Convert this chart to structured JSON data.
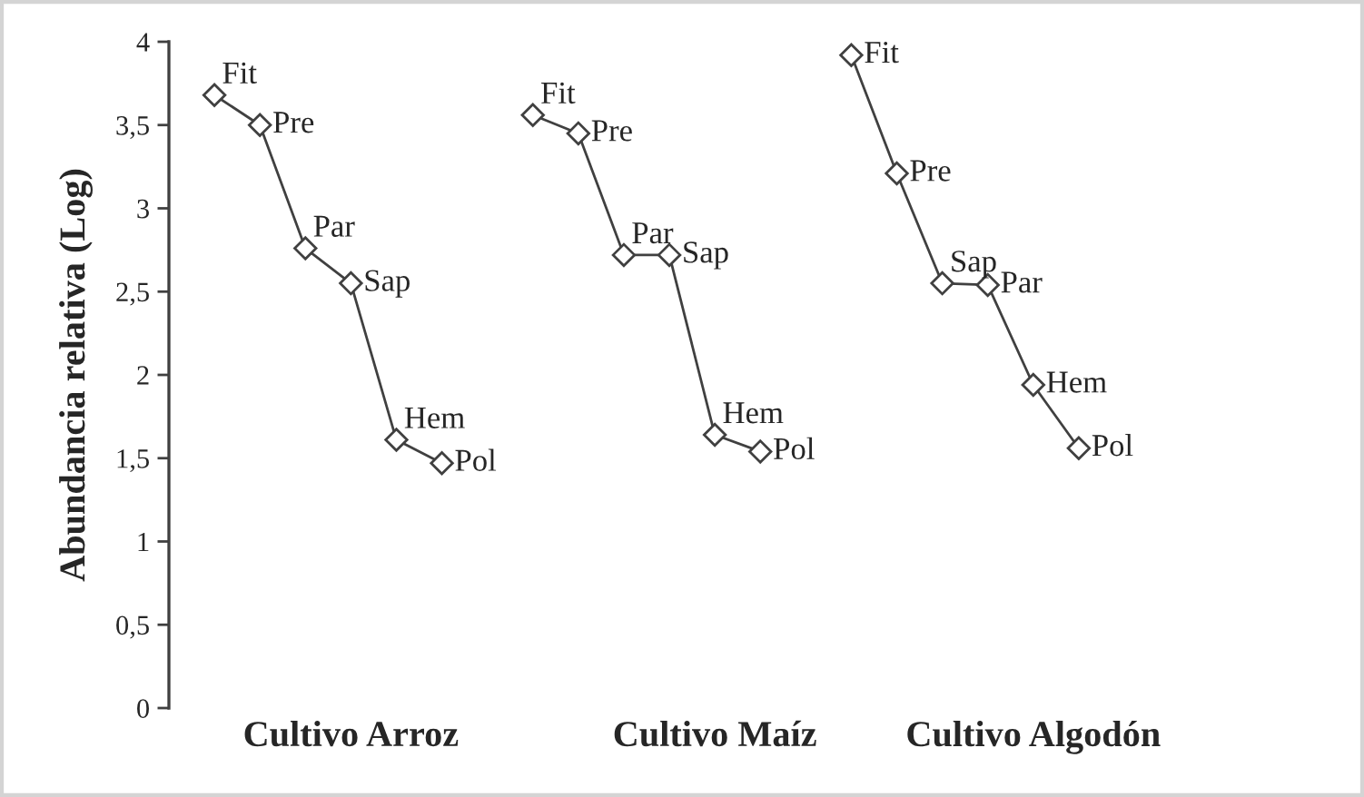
{
  "chart_data": {
    "type": "line",
    "ylabel": "Abundancia relativa (Log)",
    "marker": "diamond",
    "line_style": "solid",
    "categories": [
      null,
      null,
      null,
      "Cultivo Arroz",
      null,
      null,
      null,
      null,
      null,
      null,
      null,
      "Cultivo Maíz",
      null,
      null,
      null,
      null,
      null,
      null,
      "Cultivo Algodón",
      null
    ],
    "series": [
      {
        "color": "#404040",
        "values": [
          3.68,
          3.5,
          2.76,
          2.55,
          1.61,
          1.47,
          null,
          null,
          null,
          null,
          null,
          null,
          null,
          null,
          null,
          null,
          null,
          null,
          null,
          null
        ],
        "value_labels": [
          "Fit",
          "Pre",
          "Par",
          "Sap",
          "Hem",
          "Pol",
          null,
          null,
          null,
          null,
          null,
          null,
          null,
          null,
          null,
          null,
          null,
          null,
          null,
          null
        ]
      },
      {
        "color": "#404040",
        "values": [
          null,
          null,
          null,
          null,
          null,
          null,
          null,
          3.56,
          3.45,
          2.72,
          2.72,
          1.64,
          1.54,
          null,
          null,
          null,
          null,
          null,
          null,
          null
        ],
        "value_labels": [
          null,
          null,
          null,
          null,
          null,
          null,
          null,
          "Fit",
          "Pre",
          "Par",
          "Sap",
          "Hem",
          "Pol",
          null,
          null,
          null,
          null,
          null,
          null,
          null
        ]
      },
      {
        "color": "#404040",
        "values": [
          null,
          null,
          null,
          null,
          null,
          null,
          null,
          null,
          null,
          null,
          null,
          null,
          null,
          null,
          3.92,
          3.21,
          2.55,
          2.54,
          1.94,
          1.56
        ],
        "value_labels": [
          null,
          null,
          null,
          null,
          null,
          null,
          null,
          null,
          null,
          null,
          null,
          null,
          null,
          null,
          "Fit",
          "Pre",
          "Sap",
          "Par",
          "Hem",
          "Pol"
        ]
      }
    ],
    "ylim": [
      0,
      4
    ],
    "yticks": [
      0,
      {
        "value": 0.5,
        "label": "0,5"
      },
      1,
      {
        "value": 1.5,
        "label": "1,5"
      },
      2,
      {
        "value": 2.5,
        "label": "2,5"
      },
      3,
      {
        "value": 3.5,
        "label": "3,5"
      },
      4
    ]
  }
}
